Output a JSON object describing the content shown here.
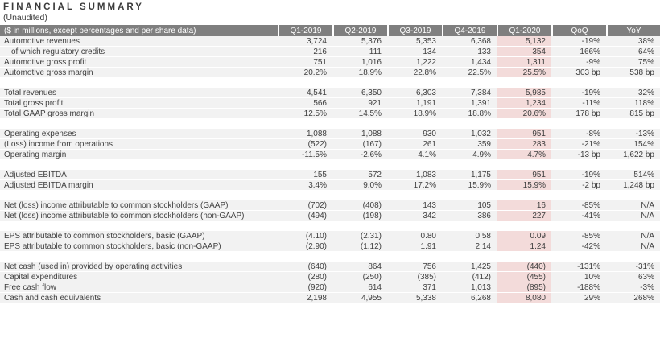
{
  "page": {
    "title": "FINANCIAL SUMMARY",
    "subtitle": "(Unaudited)"
  },
  "table": {
    "header": [
      "($ in millions, except percentages and per share data)",
      "Q1-2019",
      "Q2-2019",
      "Q3-2019",
      "Q4-2019",
      "Q1-2020",
      "QoQ",
      "YoY"
    ],
    "highlight_column": "Q1-2020",
    "colors": {
      "header_bg": "#7f7f7f",
      "header_text": "#ffffff",
      "row_bg": "#f2f2f2",
      "highlight_bg": "#f3dbda",
      "text": "#3f3f3f"
    },
    "sections": [
      {
        "rows": [
          {
            "label": "Automotive revenues",
            "indent": false,
            "values": [
              "3,724",
              "5,376",
              "5,353",
              "6,368",
              "5,132",
              "-19%",
              "38%"
            ]
          },
          {
            "label": "of which regulatory credits",
            "indent": true,
            "values": [
              "216",
              "111",
              "134",
              "133",
              "354",
              "166%",
              "64%"
            ]
          },
          {
            "label": "Automotive gross profit",
            "indent": false,
            "values": [
              "751",
              "1,016",
              "1,222",
              "1,434",
              "1,311",
              "-9%",
              "75%"
            ]
          },
          {
            "label": "Automotive gross margin",
            "indent": false,
            "values": [
              "20.2%",
              "18.9%",
              "22.8%",
              "22.5%",
              "25.5%",
              "303 bp",
              "538 bp"
            ]
          }
        ]
      },
      {
        "rows": [
          {
            "label": "Total revenues",
            "indent": false,
            "values": [
              "4,541",
              "6,350",
              "6,303",
              "7,384",
              "5,985",
              "-19%",
              "32%"
            ]
          },
          {
            "label": "Total gross profit",
            "indent": false,
            "values": [
              "566",
              "921",
              "1,191",
              "1,391",
              "1,234",
              "-11%",
              "118%"
            ]
          },
          {
            "label": "Total GAAP gross margin",
            "indent": false,
            "values": [
              "12.5%",
              "14.5%",
              "18.9%",
              "18.8%",
              "20.6%",
              "178 bp",
              "815 bp"
            ]
          }
        ]
      },
      {
        "rows": [
          {
            "label": "Operating expenses",
            "indent": false,
            "values": [
              "1,088",
              "1,088",
              "930",
              "1,032",
              "951",
              "-8%",
              "-13%"
            ]
          },
          {
            "label": "(Loss) income from operations",
            "indent": false,
            "values": [
              "(522)",
              "(167)",
              "261",
              "359",
              "283",
              "-21%",
              "154%"
            ]
          },
          {
            "label": "Operating margin",
            "indent": false,
            "values": [
              "-11.5%",
              "-2.6%",
              "4.1%",
              "4.9%",
              "4.7%",
              "-13 bp",
              "1,622 bp"
            ]
          }
        ]
      },
      {
        "rows": [
          {
            "label": "Adjusted EBITDA",
            "indent": false,
            "values": [
              "155",
              "572",
              "1,083",
              "1,175",
              "951",
              "-19%",
              "514%"
            ]
          },
          {
            "label": "Adjusted EBITDA margin",
            "indent": false,
            "values": [
              "3.4%",
              "9.0%",
              "17.2%",
              "15.9%",
              "15.9%",
              "-2 bp",
              "1,248 bp"
            ]
          }
        ]
      },
      {
        "rows": [
          {
            "label": "Net (loss) income attributable to common stockholders (GAAP)",
            "indent": false,
            "values": [
              "(702)",
              "(408)",
              "143",
              "105",
              "16",
              "-85%",
              "N/A"
            ]
          },
          {
            "label": "Net (loss) income attributable to common stockholders (non-GAAP)",
            "indent": false,
            "values": [
              "(494)",
              "(198)",
              "342",
              "386",
              "227",
              "-41%",
              "N/A"
            ]
          }
        ]
      },
      {
        "rows": [
          {
            "label": "EPS attributable to common stockholders, basic (GAAP)",
            "indent": false,
            "values": [
              "(4.10)",
              "(2.31)",
              "0.80",
              "0.58",
              "0.09",
              "-85%",
              "N/A"
            ]
          },
          {
            "label": "EPS attributable to common stockholders, basic (non-GAAP)",
            "indent": false,
            "values": [
              "(2.90)",
              "(1.12)",
              "1.91",
              "2.14",
              "1.24",
              "-42%",
              "N/A"
            ]
          }
        ]
      },
      {
        "rows": [
          {
            "label": "Net cash (used in) provided by operating activities",
            "indent": false,
            "values": [
              "(640)",
              "864",
              "756",
              "1,425",
              "(440)",
              "-131%",
              "-31%"
            ]
          },
          {
            "label": "Capital expenditures",
            "indent": false,
            "values": [
              "(280)",
              "(250)",
              "(385)",
              "(412)",
              "(455)",
              "10%",
              "63%"
            ]
          },
          {
            "label": "Free cash flow",
            "indent": false,
            "values": [
              "(920)",
              "614",
              "371",
              "1,013",
              "(895)",
              "-188%",
              "-3%"
            ]
          },
          {
            "label": "Cash and cash equivalents",
            "indent": false,
            "values": [
              "2,198",
              "4,955",
              "5,338",
              "6,268",
              "8,080",
              "29%",
              "268%"
            ]
          }
        ]
      }
    ]
  }
}
